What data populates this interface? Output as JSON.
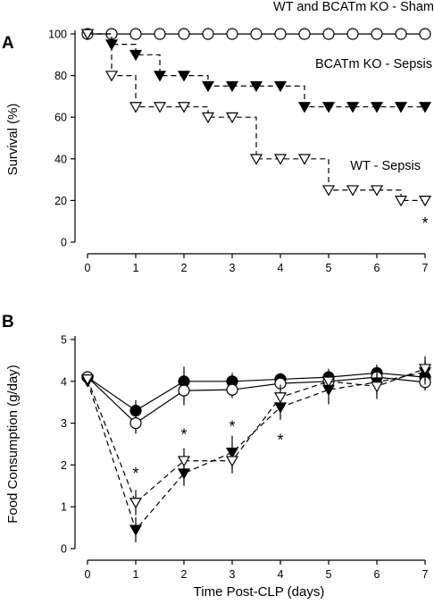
{
  "figure": {
    "panel_a_letter": "A",
    "panel_b_letter": "B",
    "shared_xlabel": "Time Post-CLP (days)"
  },
  "chart_data": [
    {
      "id": "A",
      "type": "line",
      "step": true,
      "ylabel": "Survival (%)",
      "xlabel": "",
      "xlim": [
        0,
        7
      ],
      "ylim": [
        0,
        100
      ],
      "x_ticks": [
        0,
        1,
        2,
        3,
        4,
        5,
        6,
        7
      ],
      "y_ticks": [
        0,
        20,
        40,
        60,
        80,
        100
      ],
      "grid": false,
      "series": [
        {
          "name": "WT and BCATm KO - Sham",
          "marker": "open-circle",
          "linestyle": "solid",
          "x": [
            0,
            0.5,
            1,
            1.5,
            2,
            2.5,
            3,
            3.5,
            4,
            4.5,
            5,
            5.5,
            6,
            6.5,
            7
          ],
          "y": [
            100,
            100,
            100,
            100,
            100,
            100,
            100,
            100,
            100,
            100,
            100,
            100,
            100,
            100,
            100
          ]
        },
        {
          "name": "BCATm KO - Sepsis",
          "marker": "filled-triangle-down",
          "linestyle": "dashed",
          "x": [
            0,
            0.5,
            1,
            1.5,
            2,
            2.5,
            3,
            3.5,
            4,
            4.5,
            5,
            5.5,
            6,
            6.5,
            7
          ],
          "y": [
            100,
            95,
            90,
            80,
            80,
            75,
            75,
            75,
            75,
            65,
            65,
            65,
            65,
            65,
            65
          ]
        },
        {
          "name": "WT - Sepsis",
          "marker": "open-triangle-down",
          "linestyle": "dashed",
          "x": [
            0,
            0.5,
            1,
            1.5,
            2,
            2.5,
            3,
            3.5,
            4,
            4.5,
            5,
            5.5,
            6,
            6.5,
            7
          ],
          "y": [
            100,
            80,
            65,
            65,
            65,
            60,
            60,
            40,
            40,
            40,
            25,
            25,
            25,
            20,
            20
          ]
        }
      ],
      "annotations": [
        {
          "text": "*",
          "x": 7,
          "y": 9
        }
      ]
    },
    {
      "id": "B",
      "type": "line",
      "ylabel": "Food Consumption (g/day)",
      "xlabel": "Time Post-CLP (days)",
      "xlim": [
        0,
        7
      ],
      "ylim": [
        0,
        5
      ],
      "x_ticks": [
        0,
        1,
        2,
        3,
        4,
        5,
        6,
        7
      ],
      "y_ticks": [
        0,
        1,
        2,
        3,
        4,
        5
      ],
      "grid": false,
      "series": [
        {
          "marker": "filled-circle",
          "linestyle": "solid",
          "x": [
            0,
            1,
            2,
            3,
            4,
            5,
            6,
            7
          ],
          "y": [
            4.1,
            3.3,
            4.0,
            4.0,
            4.05,
            4.1,
            4.2,
            4.1
          ],
          "err": [
            0.1,
            0.25,
            0.35,
            0.2,
            0.15,
            0.15,
            0.2,
            0.2
          ]
        },
        {
          "marker": "open-circle",
          "linestyle": "solid",
          "x": [
            0,
            1,
            2,
            3,
            4,
            5,
            6,
            7
          ],
          "y": [
            4.1,
            3.0,
            3.78,
            3.8,
            3.95,
            4.0,
            4.1,
            3.98
          ],
          "err": [
            0.1,
            0.25,
            0.35,
            0.2,
            0.15,
            0.15,
            0.2,
            0.2
          ]
        },
        {
          "marker": "filled-triangle-down",
          "linestyle": "dashed",
          "x": [
            0,
            1,
            2,
            3,
            4,
            5,
            6,
            7
          ],
          "y": [
            4.0,
            0.45,
            1.8,
            2.3,
            3.38,
            3.8,
            3.98,
            4.22
          ],
          "err": [
            0.1,
            0.3,
            0.3,
            0.4,
            0.3,
            0.35,
            0.3,
            0.3
          ]
        },
        {
          "marker": "open-triangle-down",
          "linestyle": "dashed",
          "x": [
            0,
            1,
            2,
            3,
            4,
            5,
            6,
            7
          ],
          "y": [
            4.05,
            1.1,
            2.1,
            2.1,
            3.62,
            4.0,
            3.88,
            4.3
          ],
          "err": [
            0.1,
            0.3,
            0.3,
            0.3,
            0.3,
            0.3,
            0.3,
            0.3
          ]
        }
      ],
      "annotations": [
        {
          "text": "*",
          "x": 1,
          "y": 1.8
        },
        {
          "text": "*",
          "x": 2,
          "y": 2.72
        },
        {
          "text": "*",
          "x": 3,
          "y": 2.92
        },
        {
          "text": "*",
          "x": 4,
          "y": 2.6
        }
      ]
    }
  ]
}
